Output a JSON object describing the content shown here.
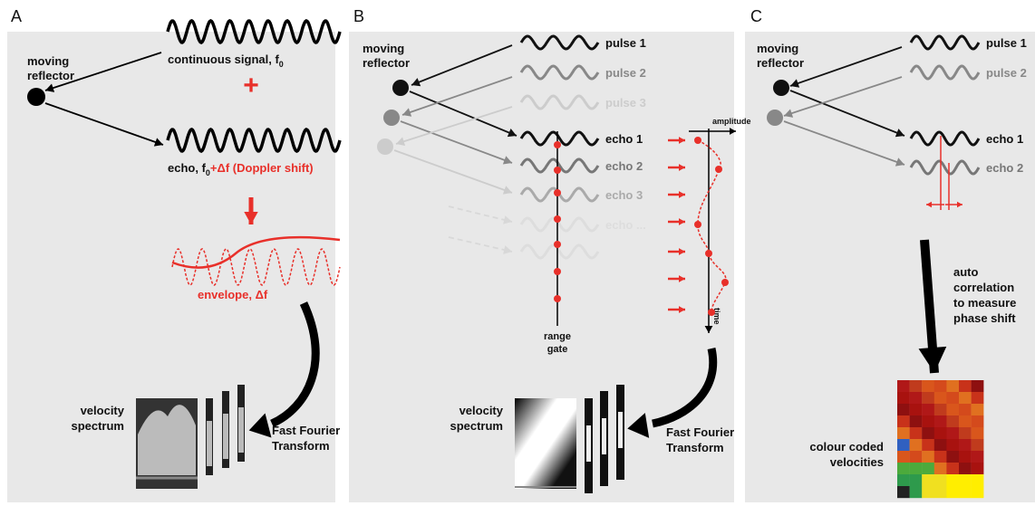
{
  "panels": [
    {
      "label": "A",
      "reflector": [
        "moving",
        "reflector"
      ],
      "signal": [
        "continuous signal, f",
        "0"
      ],
      "plus": "+",
      "echo": [
        "echo, f",
        "0",
        "+Δf (Doppler shift)"
      ],
      "envelope": "envelope, Δf",
      "spectrum": [
        "velocity",
        "spectrum"
      ],
      "transform": [
        "Fast Fourier",
        "Transform"
      ]
    },
    {
      "label": "B",
      "reflector": [
        "moving",
        "reflector"
      ],
      "pulses": [
        "pulse 1",
        "pulse 2",
        "pulse 3"
      ],
      "amplitude": "amplitude",
      "echoes": [
        "echo 1",
        "echo 2",
        "echo 3",
        "echo ..."
      ],
      "range_gate": [
        "range",
        "gate"
      ],
      "time": "time",
      "spectrum": [
        "velocity",
        "spectrum"
      ],
      "transform": [
        "Fast Fourier",
        "Transform"
      ]
    },
    {
      "label": "C",
      "reflector": [
        "moving",
        "reflector"
      ],
      "pulses": [
        "pulse 1",
        "pulse 2"
      ],
      "echoes": [
        "echo 1",
        "echo 2"
      ],
      "method": [
        "auto",
        "correlation",
        "to measure",
        "phase shift"
      ],
      "result": [
        "colour coded",
        "velocities"
      ]
    }
  ]
}
